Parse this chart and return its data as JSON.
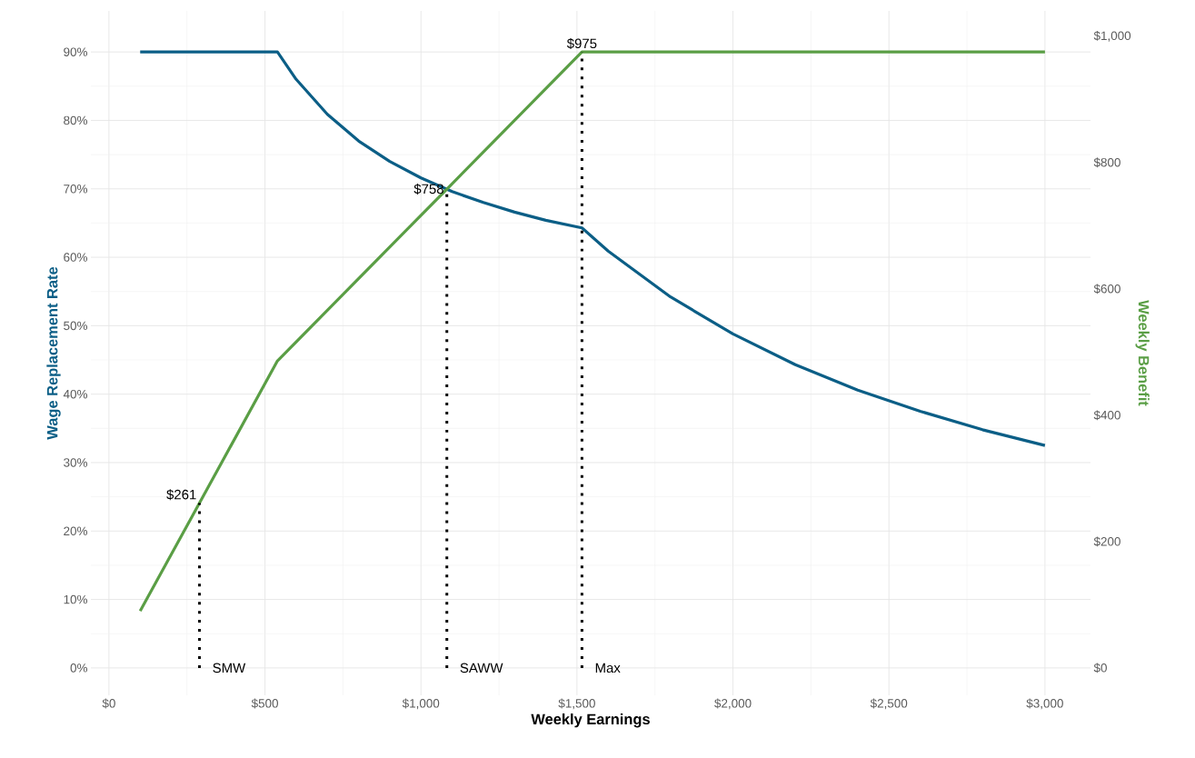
{
  "chart_data": {
    "type": "line",
    "xlabel": "Weekly Earnings",
    "ylabel": "Wage Replacement Rate",
    "y2label": "Weekly Benefit",
    "series": [
      {
        "color": "#0b5e86",
        "axis": "y",
        "x": [
          100,
          540,
          600,
          700,
          800,
          900,
          1000,
          1100,
          1200,
          1300,
          1400,
          1516,
          1600,
          1800,
          2000,
          2200,
          2400,
          2600,
          2800,
          3000
        ],
        "values": [
          90,
          90,
          86.0,
          80.9,
          77.0,
          74.0,
          71.6,
          69.6,
          68.0,
          66.6,
          65.4,
          64.3,
          60.9,
          54.2,
          48.8,
          44.3,
          40.6,
          37.5,
          34.8,
          32.5
        ]
      },
      {
        "color": "#5a9e45",
        "axis": "y2",
        "x": [
          100,
          290,
          540,
          1083,
          1516,
          3000
        ],
        "values": [
          90,
          261,
          486,
          758,
          975,
          975
        ]
      }
    ],
    "xlim": [
      -58,
      3146
    ],
    "ylim": [
      -4,
      96
    ],
    "y2lim": [
      -43.3,
      1040
    ],
    "xticks": [
      {
        "value": 0,
        "label": "$0"
      },
      {
        "value": 500,
        "label": "$500"
      },
      {
        "value": 1000,
        "label": "$1,000"
      },
      {
        "value": 1500,
        "label": "$1,500"
      },
      {
        "value": 2000,
        "label": "$2,000"
      },
      {
        "value": 2500,
        "label": "$2,500"
      },
      {
        "value": 3000,
        "label": "$3,000"
      }
    ],
    "yticks": [
      {
        "value": 0,
        "label": "0%"
      },
      {
        "value": 10,
        "label": "10%"
      },
      {
        "value": 20,
        "label": "20%"
      },
      {
        "value": 30,
        "label": "30%"
      },
      {
        "value": 40,
        "label": "40%"
      },
      {
        "value": 50,
        "label": "50%"
      },
      {
        "value": 60,
        "label": "60%"
      },
      {
        "value": 70,
        "label": "70%"
      },
      {
        "value": 80,
        "label": "80%"
      },
      {
        "value": 90,
        "label": "90%"
      }
    ],
    "y2ticks": [
      {
        "value": 0,
        "label": "$0"
      },
      {
        "value": 200,
        "label": "$200"
      },
      {
        "value": 400,
        "label": "$400"
      },
      {
        "value": 600,
        "label": "$600"
      },
      {
        "value": 800,
        "label": "$800"
      },
      {
        "value": 1000,
        "label": "$1,000"
      }
    ],
    "grid": true,
    "ref_lines": [
      {
        "axis": "x",
        "value": 290,
        "label": "SMW",
        "color": "#000000",
        "line_style": "dotted"
      },
      {
        "axis": "x",
        "value": 1083,
        "label": "SAWW",
        "color": "#000000",
        "line_style": "dotted"
      },
      {
        "axis": "x",
        "value": 1516,
        "label": "Max",
        "color": "#000000",
        "line_style": "dotted"
      }
    ],
    "annotations": [
      "$261",
      "$758",
      "$975"
    ]
  }
}
